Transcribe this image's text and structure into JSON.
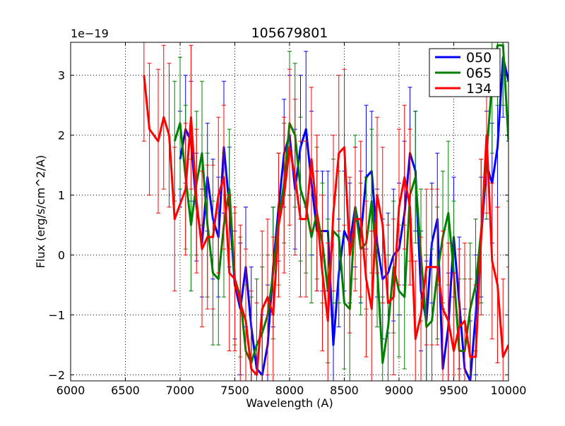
{
  "chart_data": {
    "type": "line",
    "title": "105679801",
    "xlabel": "Wavelength (A)",
    "ylabel": "Flux (erg/s/cm^2/A)",
    "y_scale_label": "1e−19",
    "xlim": [
      6000,
      10000
    ],
    "ylim": [
      -2.1,
      3.55
    ],
    "xticks": [
      6000,
      6500,
      7000,
      7500,
      8000,
      8500,
      9000,
      9500,
      10000
    ],
    "xtick_labels": [
      "6000",
      "6500",
      "7000",
      "7500",
      "8000",
      "8500",
      "9000",
      "9500",
      "10000"
    ],
    "yticks": [
      -2,
      -1,
      0,
      1,
      2,
      3
    ],
    "ytick_labels": [
      "−2",
      "−1",
      "0",
      "1",
      "2",
      "3"
    ],
    "grid": true,
    "legend_position": "top-right",
    "series": [
      {
        "name": "050",
        "color": "#0000ff",
        "x": [
          7000,
          7050,
          7100,
          7150,
          7200,
          7250,
          7300,
          7350,
          7400,
          7450,
          7500,
          7550,
          7600,
          7650,
          7700,
          7750,
          7800,
          7850,
          7900,
          7950,
          8000,
          8050,
          8100,
          8150,
          8200,
          8250,
          8300,
          8350,
          8400,
          8450,
          8500,
          8550,
          8600,
          8650,
          8700,
          8750,
          8800,
          8850,
          8900,
          8950,
          9000,
          9050,
          9100,
          9150,
          9200,
          9250,
          9300,
          9350,
          9400,
          9450,
          9500,
          9550,
          9600,
          9650,
          9700,
          9750,
          9800,
          9850,
          9900,
          9950,
          10000
        ],
        "values": [
          1.6,
          2.1,
          1.9,
          0.8,
          0.2,
          1.3,
          0.6,
          0.3,
          1.8,
          0.8,
          -0.5,
          -0.9,
          -0.2,
          -1.2,
          -1.9,
          -2.0,
          -1.5,
          -0.2,
          0.8,
          1.7,
          2.0,
          1.1,
          1.8,
          2.1,
          1.2,
          0.4,
          0.4,
          0.4,
          -1.5,
          -0.3,
          0.4,
          0.2,
          0.8,
          0.3,
          1.3,
          1.4,
          0.2,
          -0.4,
          -0.3,
          0.0,
          0.1,
          0.7,
          1.7,
          1.4,
          -0.6,
          -1.1,
          0.2,
          0.6,
          -1.9,
          -1.2,
          0.3,
          -0.8,
          -1.9,
          -2.1,
          -1.0,
          0.3,
          1.5,
          1.2,
          1.8,
          3.3,
          2.9
        ],
        "errors": [
          0.8,
          0.9,
          1.0,
          0.9,
          0.9,
          0.9,
          1.0,
          1.0,
          1.1,
          1.0,
          0.9,
          1.1,
          1.0,
          1.0,
          1.1,
          1.0,
          1.0,
          1.0,
          0.9,
          0.9,
          1.0,
          1.0,
          1.2,
          1.3,
          1.2,
          1.0,
          1.0,
          1.0,
          0.9,
          0.9,
          1.0,
          1.0,
          1.0,
          1.1,
          1.2,
          1.0,
          0.9,
          1.0,
          1.0,
          1.1,
          1.1,
          1.2,
          1.1,
          1.0,
          1.0,
          1.0,
          1.0,
          1.1,
          1.0,
          0.9,
          1.0,
          1.1,
          1.0,
          1.0,
          1.0,
          1.0,
          0.9,
          1.0,
          1.0,
          1.0,
          1.0
        ]
      },
      {
        "name": "065",
        "color": "#008000",
        "x": [
          6950,
          7000,
          7050,
          7100,
          7150,
          7200,
          7250,
          7300,
          7350,
          7400,
          7450,
          7500,
          7550,
          7600,
          7650,
          7700,
          7750,
          7800,
          7850,
          7900,
          7950,
          8000,
          8050,
          8100,
          8150,
          8200,
          8250,
          8300,
          8350,
          8400,
          8450,
          8500,
          8550,
          8600,
          8650,
          8700,
          8750,
          8800,
          8850,
          8900,
          8950,
          9000,
          9050,
          9100,
          9150,
          9200,
          9250,
          9300,
          9350,
          9400,
          9450,
          9500,
          9550,
          9600,
          9650,
          9700,
          9750,
          9800,
          9850,
          9900,
          9950,
          10000
        ],
        "values": [
          1.9,
          2.2,
          1.3,
          0.5,
          1.2,
          1.7,
          0.5,
          -0.3,
          -0.4,
          0.5,
          1.1,
          -0.4,
          -0.7,
          -1.6,
          -1.8,
          -1.5,
          -1.3,
          -1.0,
          -0.3,
          0.6,
          1.2,
          2.2,
          2.0,
          1.1,
          0.8,
          0.3,
          0.7,
          0.2,
          -0.6,
          0.4,
          0.3,
          -0.8,
          -0.9,
          0.8,
          0.1,
          0.2,
          0.9,
          -0.2,
          -1.8,
          -1.2,
          -0.2,
          -0.6,
          -0.7,
          1.0,
          1.3,
          0.0,
          -1.2,
          -1.1,
          -0.3,
          0.3,
          0.7,
          -0.3,
          -1.6,
          -1.6,
          -0.9,
          -0.5,
          0.4,
          1.7,
          2.9,
          3.5,
          3.5,
          1.9
        ],
        "errors": [
          1.0,
          1.1,
          1.2,
          1.1,
          1.2,
          1.2,
          1.2,
          1.2,
          1.1,
          1.2,
          1.0,
          1.1,
          1.0,
          1.1,
          1.1,
          1.1,
          1.1,
          1.0,
          1.1,
          1.1,
          1.0,
          1.2,
          1.2,
          1.2,
          1.1,
          1.1,
          1.1,
          1.0,
          1.2,
          1.2,
          1.1,
          1.1,
          1.2,
          1.2,
          1.1,
          1.1,
          1.2,
          1.0,
          1.1,
          1.2,
          1.1,
          1.1,
          1.2,
          1.1,
          1.1,
          1.1,
          1.2,
          1.2,
          1.1,
          1.1,
          1.2,
          1.2,
          1.2,
          1.2,
          1.1,
          1.1,
          1.2,
          1.1,
          1.2,
          1.0,
          1.0,
          1.0
        ]
      },
      {
        "name": "134",
        "color": "#ff0000",
        "x": [
          6670,
          6720,
          6800,
          6850,
          6900,
          6950,
          7050,
          7100,
          7150,
          7200,
          7250,
          7300,
          7350,
          7400,
          7450,
          7500,
          7550,
          7600,
          7650,
          7700,
          7750,
          7800,
          7850,
          7900,
          7950,
          8000,
          8050,
          8100,
          8150,
          8200,
          8250,
          8300,
          8350,
          8400,
          8450,
          8500,
          8550,
          8600,
          8650,
          8700,
          8750,
          8800,
          8850,
          8900,
          8950,
          9000,
          9050,
          9100,
          9150,
          9200,
          9250,
          9300,
          9350,
          9400,
          9450,
          9500,
          9550,
          9600,
          9650,
          9700,
          9750,
          9800,
          9850,
          9900,
          9950,
          10000
        ],
        "values": [
          3.0,
          2.1,
          1.9,
          2.3,
          2.0,
          0.6,
          1.1,
          2.3,
          0.9,
          0.1,
          0.3,
          0.3,
          1.0,
          1.3,
          -0.3,
          -0.4,
          -0.8,
          -1.1,
          -1.9,
          -2.0,
          -0.9,
          -0.7,
          -1.0,
          0.5,
          1.0,
          1.8,
          1.3,
          0.6,
          0.6,
          1.6,
          0.7,
          -0.3,
          -1.1,
          0.7,
          1.7,
          1.8,
          0.0,
          0.6,
          0.6,
          -0.4,
          -0.9,
          1.0,
          0.5,
          -0.8,
          -0.7,
          0.8,
          1.3,
          0.8,
          -1.4,
          -1.0,
          -0.2,
          -0.2,
          -0.2,
          -0.9,
          -1.1,
          -1.6,
          -1.2,
          -1.1,
          -1.7,
          -1.7,
          0.3,
          2.0,
          -0.1,
          -0.5,
          -1.7,
          -1.5
        ],
        "errors": [
          1.1,
          1.1,
          1.2,
          1.2,
          1.2,
          1.2,
          1.1,
          1.2,
          1.2,
          1.3,
          1.2,
          1.2,
          1.3,
          1.2,
          1.3,
          1.2,
          1.3,
          1.2,
          1.3,
          1.2,
          1.3,
          1.3,
          1.3,
          1.2,
          1.3,
          1.3,
          1.3,
          1.3,
          1.3,
          1.2,
          1.3,
          1.3,
          1.3,
          1.3,
          1.3,
          1.3,
          1.3,
          1.2,
          1.3,
          1.3,
          1.3,
          1.3,
          1.3,
          1.3,
          1.3,
          1.3,
          1.2,
          1.3,
          1.3,
          1.3,
          1.3,
          1.3,
          1.3,
          1.3,
          1.3,
          1.3,
          1.3,
          1.3,
          1.3,
          1.2,
          1.3,
          1.3,
          1.3,
          1.3,
          1.3,
          1.3
        ]
      }
    ]
  }
}
